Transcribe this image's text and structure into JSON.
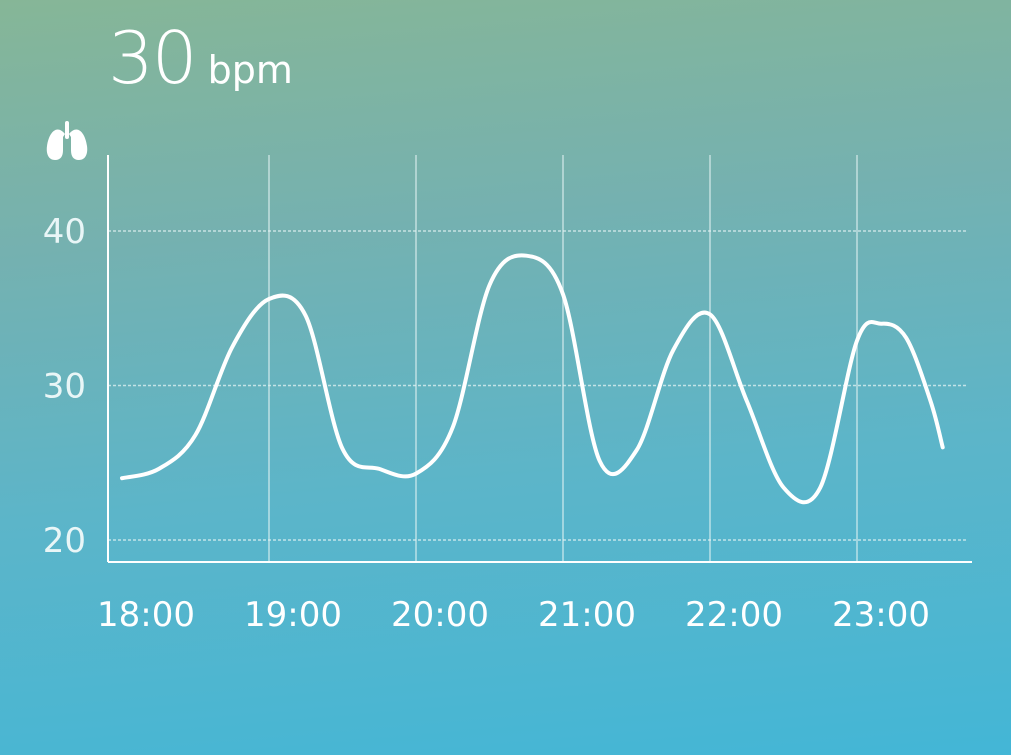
{
  "reading": {
    "value": "30",
    "unit": "bpm"
  },
  "icon": "lungs-icon",
  "colors": {
    "line": "#ffffff",
    "grid": "#e4f3f4",
    "bg_top": "#86b697",
    "bg_bottom": "#43b6d6"
  },
  "chart_data": {
    "type": "line",
    "x": [
      "18:00",
      "18:15",
      "18:30",
      "18:45",
      "19:00",
      "19:15",
      "19:30",
      "19:45",
      "20:00",
      "20:15",
      "20:30",
      "20:45",
      "21:00",
      "21:15",
      "21:30",
      "21:45",
      "22:00",
      "22:15",
      "22:30",
      "22:45",
      "23:00",
      "23:10",
      "23:20",
      "23:30",
      "23:35"
    ],
    "y": [
      24,
      24.6,
      26.8,
      32.5,
      35.6,
      34.5,
      25.9,
      24.6,
      24.3,
      27.3,
      36.5,
      38.4,
      35.9,
      25.1,
      25.8,
      32.3,
      34.6,
      29.0,
      23.4,
      23.4,
      32.9,
      34.0,
      33.1,
      29.0,
      26.0
    ],
    "x_ticks": [
      "18:00",
      "19:00",
      "20:00",
      "21:00",
      "22:00",
      "23:00"
    ],
    "y_ticks": [
      "20",
      "30",
      "40"
    ],
    "ylim": [
      19.5,
      45
    ],
    "grid": true,
    "title": "",
    "xlabel": "",
    "ylabel": ""
  }
}
